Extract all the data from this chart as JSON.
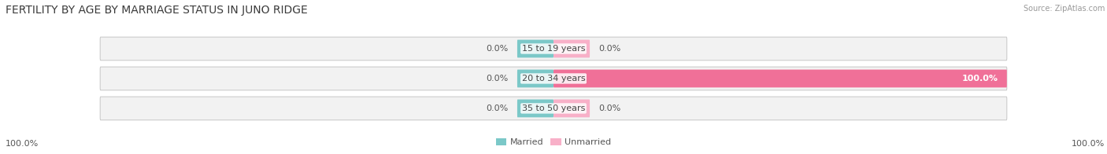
{
  "title": "FERTILITY BY AGE BY MARRIAGE STATUS IN JUNO RIDGE",
  "source": "Source: ZipAtlas.com",
  "categories": [
    "15 to 19 years",
    "20 to 34 years",
    "35 to 50 years"
  ],
  "married_values": [
    0.0,
    0.0,
    0.0
  ],
  "unmarried_values": [
    0.0,
    100.0,
    0.0
  ],
  "married_color": "#7bc8c8",
  "unmarried_color": "#f07098",
  "unmarried_color_light": "#f8b0c8",
  "bar_bg_color": "#f2f2f2",
  "bar_border_color": "#cccccc",
  "title_fontsize": 10,
  "label_fontsize": 8,
  "source_fontsize": 7,
  "fig_bg_color": "#ffffff",
  "left_label": "100.0%",
  "right_label": "100.0%",
  "text_color": "#555555",
  "source_color": "#999999"
}
